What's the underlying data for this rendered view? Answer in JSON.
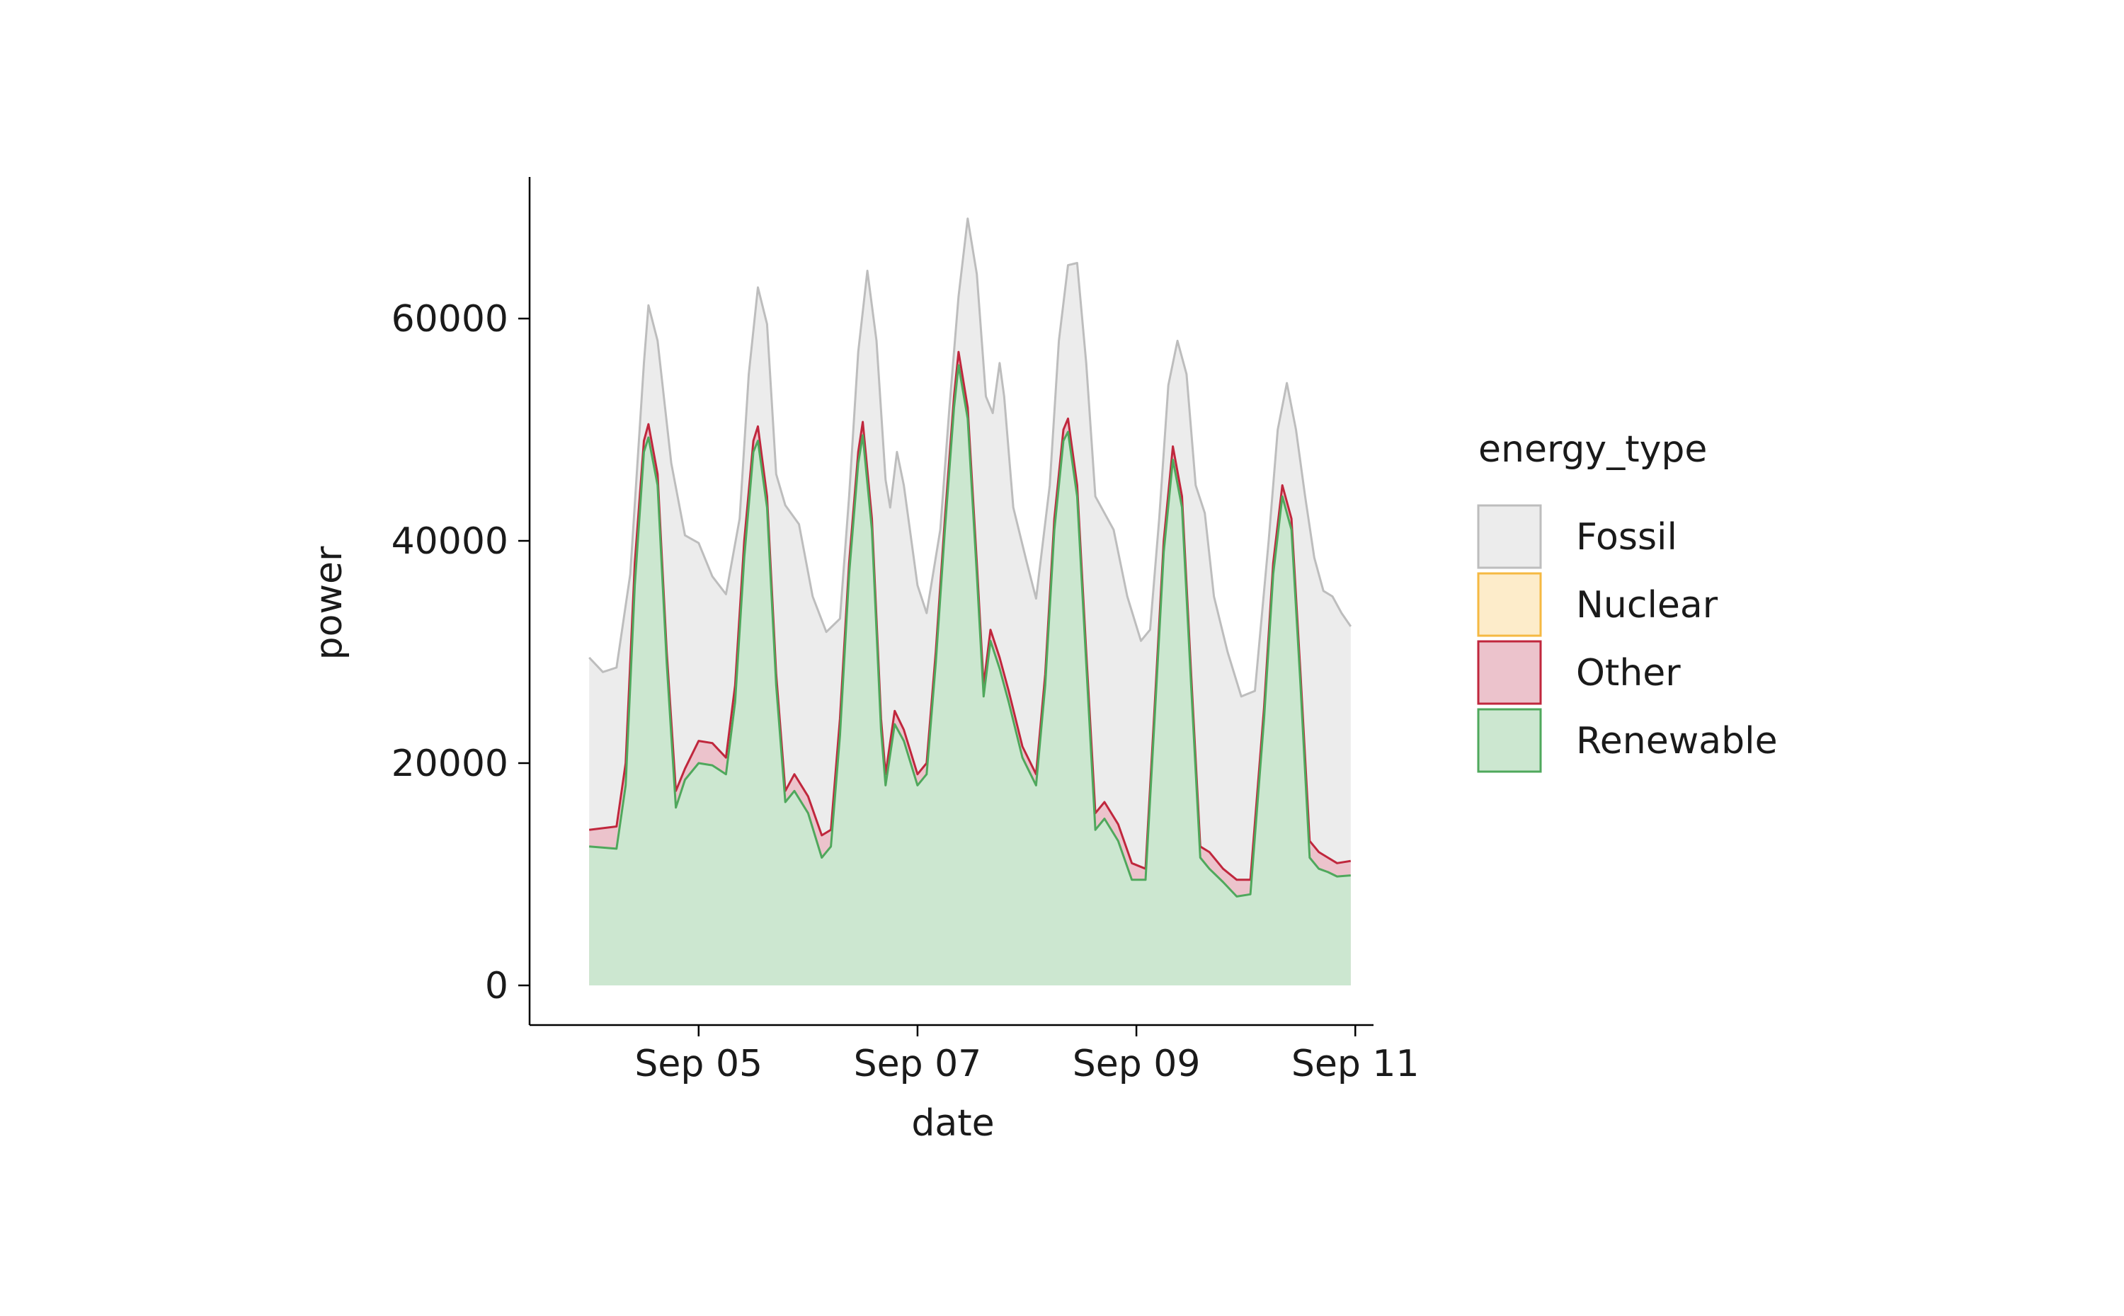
{
  "chart_data": {
    "type": "area",
    "stacked": true,
    "xlabel": "date",
    "ylabel": "power",
    "x_range": [
      "2023-09-03T19:00",
      "2023-09-10T23:00"
    ],
    "ylim": [
      -3300,
      72000
    ],
    "x_ticks": [
      {
        "date": "2023-09-05",
        "label": "Sep 05"
      },
      {
        "date": "2023-09-07",
        "label": "Sep 07"
      },
      {
        "date": "2023-09-09",
        "label": "Sep 09"
      },
      {
        "date": "2023-09-11",
        "label": "Sep 11"
      }
    ],
    "y_ticks": [
      {
        "value": 0,
        "label": "0"
      },
      {
        "value": 20000,
        "label": "20000"
      },
      {
        "value": 40000,
        "label": "40000"
      },
      {
        "value": 60000,
        "label": "60000"
      }
    ],
    "legend": {
      "title": "energy_type",
      "position": "right"
    },
    "grid": false,
    "series": [
      {
        "name": "Fossil",
        "line_color": "#bdbdbd",
        "fill_color": "#ececec",
        "cumulative": [
          [
            "2023-09-04T00:00",
            29500
          ],
          [
            "2023-09-04T03:00",
            28200
          ],
          [
            "2023-09-04T06:00",
            28600
          ],
          [
            "2023-09-04T09:00",
            37000
          ],
          [
            "2023-09-04T12:00",
            56000
          ],
          [
            "2023-09-04T13:00",
            61200
          ],
          [
            "2023-09-04T15:00",
            58000
          ],
          [
            "2023-09-04T18:00",
            47000
          ],
          [
            "2023-09-04T21:00",
            40500
          ],
          [
            "2023-09-05T00:00",
            39800
          ],
          [
            "2023-09-05T03:00",
            36800
          ],
          [
            "2023-09-05T06:00",
            35200
          ],
          [
            "2023-09-05T09:00",
            42000
          ],
          [
            "2023-09-05T11:00",
            55000
          ],
          [
            "2023-09-05T13:00",
            62800
          ],
          [
            "2023-09-05T15:00",
            59500
          ],
          [
            "2023-09-05T17:00",
            46000
          ],
          [
            "2023-09-05T19:00",
            43200
          ],
          [
            "2023-09-05T22:00",
            41500
          ],
          [
            "2023-09-06T01:00",
            35000
          ],
          [
            "2023-09-06T04:00",
            31800
          ],
          [
            "2023-09-06T07:00",
            33000
          ],
          [
            "2023-09-06T09:00",
            44000
          ],
          [
            "2023-09-06T11:00",
            57000
          ],
          [
            "2023-09-06T13:00",
            64300
          ],
          [
            "2023-09-06T15:00",
            58000
          ],
          [
            "2023-09-06T17:00",
            45500
          ],
          [
            "2023-09-06T18:00",
            43000
          ],
          [
            "2023-09-06T19:30",
            48000
          ],
          [
            "2023-09-06T21:00",
            45000
          ],
          [
            "2023-09-07T00:00",
            36000
          ],
          [
            "2023-09-07T02:00",
            33500
          ],
          [
            "2023-09-07T05:00",
            41000
          ],
          [
            "2023-09-07T07:00",
            52000
          ],
          [
            "2023-09-07T09:00",
            62000
          ],
          [
            "2023-09-07T11:00",
            69000
          ],
          [
            "2023-09-07T13:00",
            64000
          ],
          [
            "2023-09-07T15:00",
            53000
          ],
          [
            "2023-09-07T16:30",
            51500
          ],
          [
            "2023-09-07T18:00",
            56000
          ],
          [
            "2023-09-07T19:00",
            53000
          ],
          [
            "2023-09-07T21:00",
            43000
          ],
          [
            "2023-09-08T00:00",
            38000
          ],
          [
            "2023-09-08T02:00",
            34800
          ],
          [
            "2023-09-08T05:00",
            45000
          ],
          [
            "2023-09-08T07:00",
            58000
          ],
          [
            "2023-09-08T09:00",
            64800
          ],
          [
            "2023-09-08T11:00",
            65000
          ],
          [
            "2023-09-08T13:00",
            56000
          ],
          [
            "2023-09-08T15:00",
            44000
          ],
          [
            "2023-09-08T17:00",
            42500
          ],
          [
            "2023-09-08T19:00",
            41000
          ],
          [
            "2023-09-08T22:00",
            35000
          ],
          [
            "2023-09-09T01:00",
            31000
          ],
          [
            "2023-09-09T03:00",
            32000
          ],
          [
            "2023-09-09T05:00",
            42000
          ],
          [
            "2023-09-09T07:00",
            54000
          ],
          [
            "2023-09-09T09:00",
            58000
          ],
          [
            "2023-09-09T11:00",
            55000
          ],
          [
            "2023-09-09T13:00",
            45000
          ],
          [
            "2023-09-09T15:00",
            42500
          ],
          [
            "2023-09-09T17:00",
            35000
          ],
          [
            "2023-09-09T20:00",
            30000
          ],
          [
            "2023-09-09T23:00",
            26000
          ],
          [
            "2023-09-10T02:00",
            26500
          ],
          [
            "2023-09-10T05:00",
            40000
          ],
          [
            "2023-09-10T07:00",
            50000
          ],
          [
            "2023-09-10T09:00",
            54200
          ],
          [
            "2023-09-10T11:00",
            50000
          ],
          [
            "2023-09-10T13:00",
            44000
          ],
          [
            "2023-09-10T15:00",
            38500
          ],
          [
            "2023-09-10T17:00",
            35500
          ],
          [
            "2023-09-10T19:00",
            35000
          ],
          [
            "2023-09-10T21:00",
            33500
          ],
          [
            "2023-09-10T23:00",
            32300
          ]
        ]
      },
      {
        "name": "Nuclear",
        "line_color": "#f5b942",
        "fill_color": "#fdecca",
        "cumulative": []
      },
      {
        "name": "Other",
        "line_color": "#c0273d",
        "fill_color": "#ecc3cc",
        "cumulative": [
          [
            "2023-09-04T00:00",
            14000
          ],
          [
            "2023-09-04T06:00",
            14300
          ],
          [
            "2023-09-04T08:00",
            20000
          ],
          [
            "2023-09-04T10:00",
            38000
          ],
          [
            "2023-09-04T12:00",
            49000
          ],
          [
            "2023-09-04T13:00",
            50500
          ],
          [
            "2023-09-04T15:00",
            46000
          ],
          [
            "2023-09-04T17:00",
            30000
          ],
          [
            "2023-09-04T19:00",
            17500
          ],
          [
            "2023-09-04T21:00",
            19500
          ],
          [
            "2023-09-05T00:00",
            22000
          ],
          [
            "2023-09-05T03:00",
            21800
          ],
          [
            "2023-09-05T06:00",
            20500
          ],
          [
            "2023-09-05T08:00",
            27000
          ],
          [
            "2023-09-05T10:00",
            40000
          ],
          [
            "2023-09-05T12:00",
            49000
          ],
          [
            "2023-09-05T13:00",
            50300
          ],
          [
            "2023-09-05T15:00",
            44000
          ],
          [
            "2023-09-05T17:00",
            28000
          ],
          [
            "2023-09-05T19:00",
            17500
          ],
          [
            "2023-09-05T21:00",
            19000
          ],
          [
            "2023-09-06T00:00",
            17000
          ],
          [
            "2023-09-06T03:00",
            13500
          ],
          [
            "2023-09-06T05:00",
            14000
          ],
          [
            "2023-09-06T07:00",
            24000
          ],
          [
            "2023-09-06T09:00",
            38000
          ],
          [
            "2023-09-06T11:00",
            48000
          ],
          [
            "2023-09-06T12:00",
            50700
          ],
          [
            "2023-09-06T14:00",
            42000
          ],
          [
            "2023-09-06T16:00",
            24000
          ],
          [
            "2023-09-06T17:00",
            19000
          ],
          [
            "2023-09-06T19:00",
            24700
          ],
          [
            "2023-09-06T21:00",
            23000
          ],
          [
            "2023-09-07T00:00",
            19000
          ],
          [
            "2023-09-07T02:00",
            20000
          ],
          [
            "2023-09-07T04:00",
            30000
          ],
          [
            "2023-09-07T06:00",
            42000
          ],
          [
            "2023-09-07T08:00",
            53000
          ],
          [
            "2023-09-07T09:00",
            57000
          ],
          [
            "2023-09-07T11:00",
            52000
          ],
          [
            "2023-09-07T13:00",
            38000
          ],
          [
            "2023-09-07T14:30",
            27000
          ],
          [
            "2023-09-07T16:00",
            32000
          ],
          [
            "2023-09-07T18:00",
            29500
          ],
          [
            "2023-09-07T20:00",
            26500
          ],
          [
            "2023-09-07T23:00",
            21500
          ],
          [
            "2023-09-08T02:00",
            19000
          ],
          [
            "2023-09-08T04:00",
            28000
          ],
          [
            "2023-09-08T06:00",
            42000
          ],
          [
            "2023-09-08T08:00",
            50000
          ],
          [
            "2023-09-08T09:00",
            51000
          ],
          [
            "2023-09-08T11:00",
            45000
          ],
          [
            "2023-09-08T13:00",
            30000
          ],
          [
            "2023-09-08T15:00",
            15500
          ],
          [
            "2023-09-08T17:00",
            16500
          ],
          [
            "2023-09-08T20:00",
            14500
          ],
          [
            "2023-09-08T23:00",
            11000
          ],
          [
            "2023-09-09T02:00",
            10500
          ],
          [
            "2023-09-09T04:00",
            25000
          ],
          [
            "2023-09-09T06:00",
            40000
          ],
          [
            "2023-09-09T08:00",
            48500
          ],
          [
            "2023-09-09T10:00",
            44000
          ],
          [
            "2023-09-09T12:00",
            28000
          ],
          [
            "2023-09-09T14:00",
            12500
          ],
          [
            "2023-09-09T16:00",
            12000
          ],
          [
            "2023-09-09T19:00",
            10500
          ],
          [
            "2023-09-09T22:00",
            9500
          ],
          [
            "2023-09-10T01:00",
            9500
          ],
          [
            "2023-09-10T04:00",
            25000
          ],
          [
            "2023-09-10T06:00",
            38000
          ],
          [
            "2023-09-10T08:00",
            45000
          ],
          [
            "2023-09-10T10:00",
            42000
          ],
          [
            "2023-09-10T12:00",
            28000
          ],
          [
            "2023-09-10T14:00",
            13000
          ],
          [
            "2023-09-10T16:00",
            12000
          ],
          [
            "2023-09-10T18:00",
            11500
          ],
          [
            "2023-09-10T20:00",
            11000
          ],
          [
            "2023-09-10T23:00",
            11200
          ]
        ]
      },
      {
        "name": "Renewable",
        "line_color": "#4fa85c",
        "fill_color": "#cce7d0",
        "cumulative": [
          [
            "2023-09-04T00:00",
            12500
          ],
          [
            "2023-09-04T06:00",
            12300
          ],
          [
            "2023-09-04T08:00",
            18000
          ],
          [
            "2023-09-04T10:00",
            36000
          ],
          [
            "2023-09-04T12:00",
            48000
          ],
          [
            "2023-09-04T13:00",
            49300
          ],
          [
            "2023-09-04T15:00",
            45000
          ],
          [
            "2023-09-04T17:00",
            29000
          ],
          [
            "2023-09-04T19:00",
            16000
          ],
          [
            "2023-09-04T21:00",
            18500
          ],
          [
            "2023-09-05T00:00",
            20000
          ],
          [
            "2023-09-05T03:00",
            19800
          ],
          [
            "2023-09-05T06:00",
            19000
          ],
          [
            "2023-09-05T08:00",
            25500
          ],
          [
            "2023-09-05T10:00",
            38500
          ],
          [
            "2023-09-05T12:00",
            48000
          ],
          [
            "2023-09-05T13:00",
            49000
          ],
          [
            "2023-09-05T15:00",
            43000
          ],
          [
            "2023-09-05T17:00",
            27000
          ],
          [
            "2023-09-05T19:00",
            16500
          ],
          [
            "2023-09-05T21:00",
            17500
          ],
          [
            "2023-09-06T00:00",
            15500
          ],
          [
            "2023-09-06T03:00",
            11500
          ],
          [
            "2023-09-06T05:00",
            12500
          ],
          [
            "2023-09-06T07:00",
            22500
          ],
          [
            "2023-09-06T09:00",
            37000
          ],
          [
            "2023-09-06T11:00",
            47000
          ],
          [
            "2023-09-06T12:00",
            49500
          ],
          [
            "2023-09-06T14:00",
            41000
          ],
          [
            "2023-09-06T16:00",
            23000
          ],
          [
            "2023-09-06T17:00",
            18000
          ],
          [
            "2023-09-06T19:00",
            23500
          ],
          [
            "2023-09-06T21:00",
            22000
          ],
          [
            "2023-09-07T00:00",
            18000
          ],
          [
            "2023-09-07T02:00",
            19000
          ],
          [
            "2023-09-07T04:00",
            29000
          ],
          [
            "2023-09-07T06:00",
            41000
          ],
          [
            "2023-09-07T08:00",
            52000
          ],
          [
            "2023-09-07T09:00",
            55800
          ],
          [
            "2023-09-07T11:00",
            51000
          ],
          [
            "2023-09-07T13:00",
            37000
          ],
          [
            "2023-09-07T14:30",
            26000
          ],
          [
            "2023-09-07T16:00",
            31000
          ],
          [
            "2023-09-07T18:00",
            28500
          ],
          [
            "2023-09-07T20:00",
            25500
          ],
          [
            "2023-09-07T23:00",
            20500
          ],
          [
            "2023-09-08T02:00",
            18000
          ],
          [
            "2023-09-08T04:00",
            27000
          ],
          [
            "2023-09-08T06:00",
            41000
          ],
          [
            "2023-09-08T08:00",
            49000
          ],
          [
            "2023-09-08T09:00",
            49800
          ],
          [
            "2023-09-08T11:00",
            44000
          ],
          [
            "2023-09-08T13:00",
            29000
          ],
          [
            "2023-09-08T15:00",
            14000
          ],
          [
            "2023-09-08T17:00",
            15000
          ],
          [
            "2023-09-08T20:00",
            13000
          ],
          [
            "2023-09-08T23:00",
            9500
          ],
          [
            "2023-09-09T02:00",
            9500
          ],
          [
            "2023-09-09T04:00",
            24000
          ],
          [
            "2023-09-09T06:00",
            39000
          ],
          [
            "2023-09-09T08:00",
            47300
          ],
          [
            "2023-09-09T10:00",
            43000
          ],
          [
            "2023-09-09T12:00",
            27000
          ],
          [
            "2023-09-09T14:00",
            11500
          ],
          [
            "2023-09-09T16:00",
            10500
          ],
          [
            "2023-09-09T19:00",
            9300
          ],
          [
            "2023-09-09T22:00",
            8000
          ],
          [
            "2023-09-10T01:00",
            8200
          ],
          [
            "2023-09-10T04:00",
            24000
          ],
          [
            "2023-09-10T06:00",
            37000
          ],
          [
            "2023-09-10T08:00",
            44000
          ],
          [
            "2023-09-10T10:00",
            41000
          ],
          [
            "2023-09-10T12:00",
            27000
          ],
          [
            "2023-09-10T14:00",
            11500
          ],
          [
            "2023-09-10T16:00",
            10500
          ],
          [
            "2023-09-10T18:00",
            10200
          ],
          [
            "2023-09-10T20:00",
            9800
          ],
          [
            "2023-09-10T23:00",
            9900
          ]
        ]
      }
    ]
  }
}
